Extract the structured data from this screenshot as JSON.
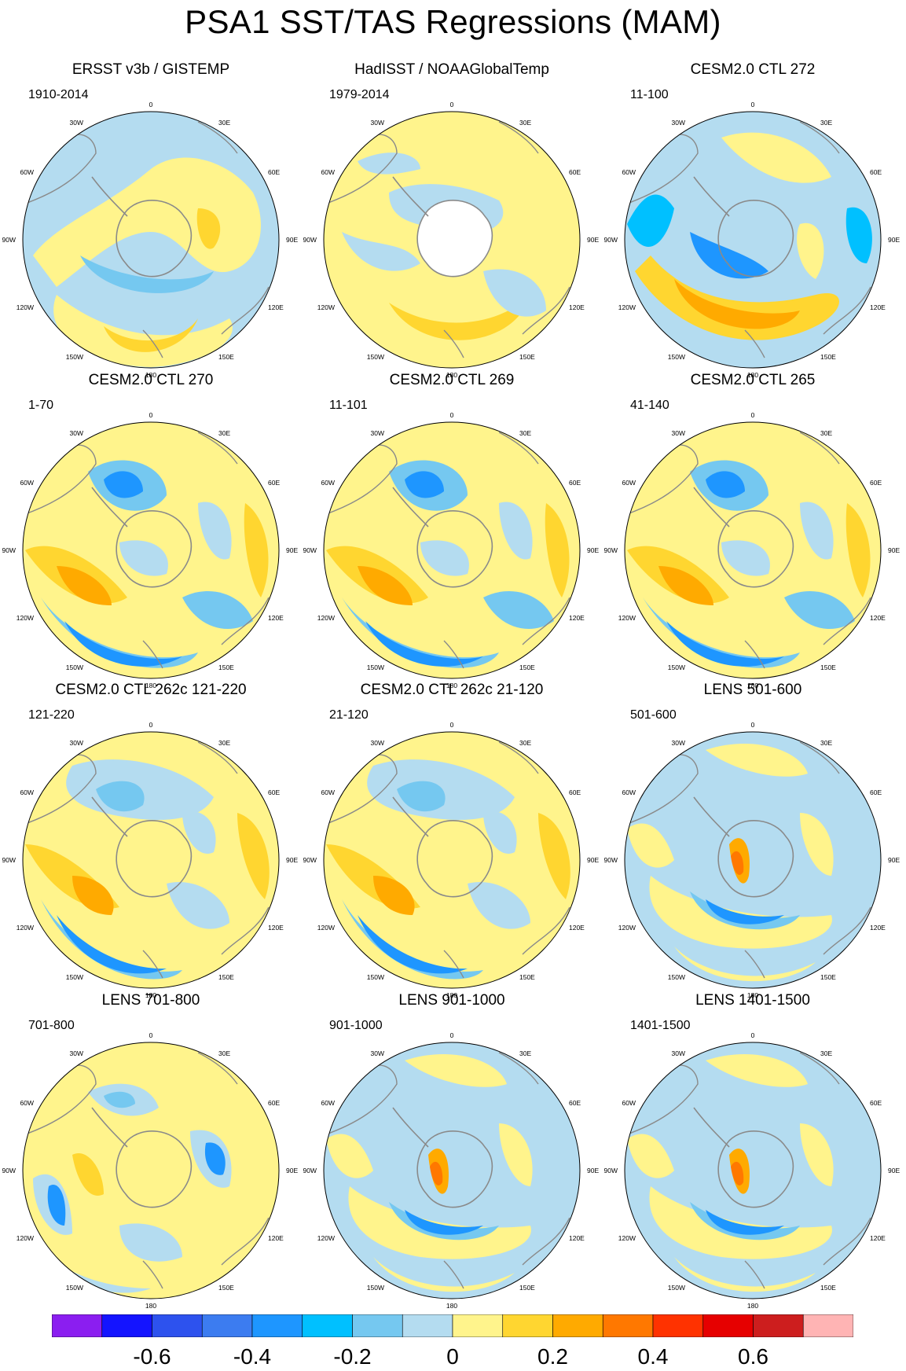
{
  "title": "PSA1 SST/TAS Regressions (MAM)",
  "lon_labels": [
    "0",
    "30E",
    "60E",
    "90E",
    "120E",
    "150E",
    "180",
    "150W",
    "120W",
    "90W",
    "60W",
    "30W"
  ],
  "panels": [
    {
      "title": "ERSST v3b / GISTEMP",
      "years": "1910-2014",
      "pattern": "ersst"
    },
    {
      "title": "HadISST / NOAAGlobalTemp",
      "years": "1979-2014",
      "pattern": "hadisst"
    },
    {
      "title": "CESM2.0 CTL 272",
      "years": "11-100",
      "pattern": "model-a"
    },
    {
      "title": "CESM2.0 CTL 270",
      "years": "1-70",
      "pattern": "model-b"
    },
    {
      "title": "CESM2.0 CTL 269",
      "years": "11-101",
      "pattern": "model-b"
    },
    {
      "title": "CESM2.0 CTL 265",
      "years": "41-140",
      "pattern": "model-b"
    },
    {
      "title": "CESM2.0 CTL 262c 121-220",
      "years": "121-220",
      "pattern": "model-c"
    },
    {
      "title": "CESM2.0 CTL 262c 21-120",
      "years": "21-120",
      "pattern": "model-c"
    },
    {
      "title": "LENS 501-600",
      "years": "501-600",
      "pattern": "lens-a"
    },
    {
      "title": "LENS 701-800",
      "years": "701-800",
      "pattern": "lens-b"
    },
    {
      "title": "LENS 901-1000",
      "years": "901-1000",
      "pattern": "lens-a"
    },
    {
      "title": "LENS 1401-1500",
      "years": "1401-1500",
      "pattern": "lens-a"
    }
  ],
  "colorbar": {
    "colors": [
      "#8b1ef0",
      "#1414ff",
      "#2d52ee",
      "#3c7cf0",
      "#1e96ff",
      "#00c0ff",
      "#75c8f0",
      "#b4dcf0",
      "#fff48c",
      "#ffd630",
      "#ffaa00",
      "#ff7800",
      "#ff3200",
      "#e60000",
      "#cd1e1e",
      "#ffb4b4"
    ],
    "labels": [
      "-0.6",
      "-0.4",
      "-0.2",
      "0",
      "0.2",
      "0.4",
      "0.6"
    ]
  },
  "palette": {
    "light_blue": "#b4dcf0",
    "mid_blue": "#75c8f0",
    "cyan": "#00c0ff",
    "blue": "#1e96ff",
    "deep_blue": "#3c7cf0",
    "darker_blue": "#2d52ee",
    "light_yellow": "#fff48c",
    "gold": "#ffd630",
    "orange": "#ffaa00",
    "dark_orange": "#ff7800",
    "red": "#ff3200",
    "land_line": "#8a8a8a",
    "missing": "#ffffff"
  }
}
